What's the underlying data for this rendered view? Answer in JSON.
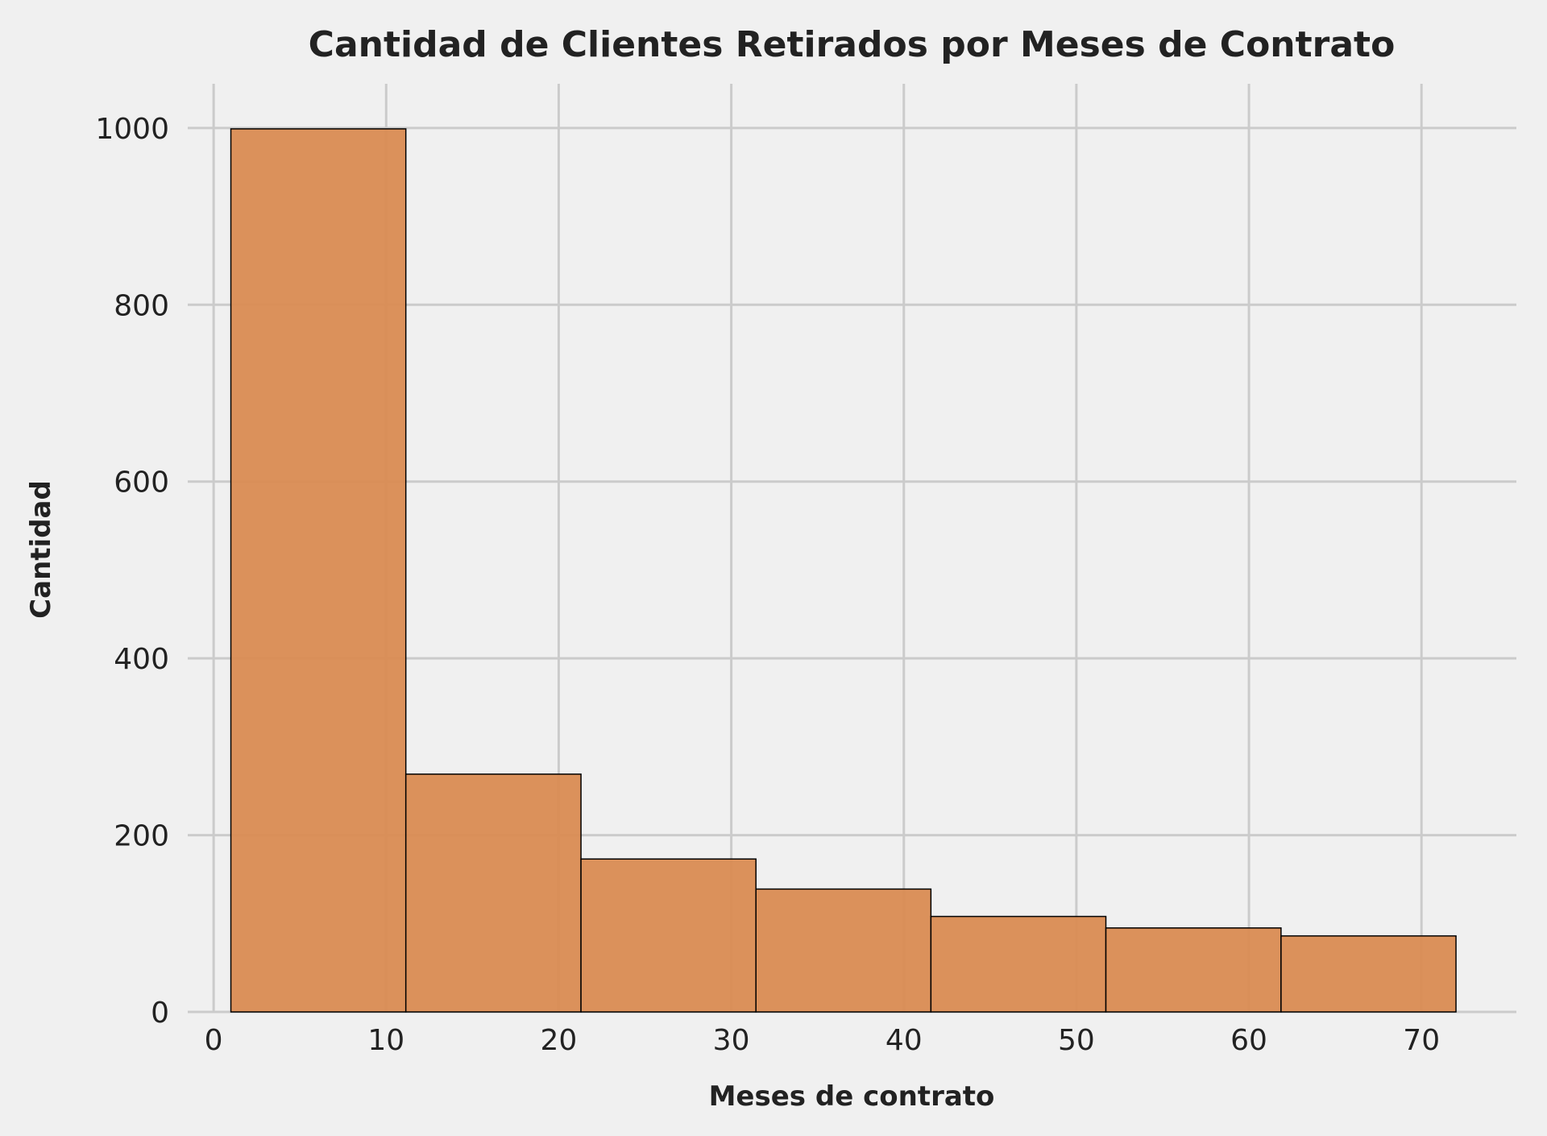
{
  "chart_data": {
    "type": "bar",
    "subtype": "histogram",
    "title": "Cantidad de Clientes Retirados por Meses de Contrato",
    "xlabel": "Meses de contrato",
    "ylabel": "Cantidad",
    "xlim": [
      -1.5,
      75.5
    ],
    "ylim": [
      0,
      1050
    ],
    "xticks": [
      0,
      10,
      20,
      30,
      40,
      50,
      60,
      70
    ],
    "yticks": [
      0,
      200,
      400,
      600,
      800,
      1000
    ],
    "bin_edges": [
      1,
      11.14,
      21.29,
      31.43,
      41.57,
      51.71,
      61.86,
      72
    ],
    "values": [
      999,
      269,
      173,
      139,
      108,
      95,
      86
    ],
    "grid": true,
    "colors": {
      "bar": "#d98b52",
      "edge": "#000000",
      "grid": "#cbcbcb",
      "background": "#f0f0f0"
    }
  }
}
